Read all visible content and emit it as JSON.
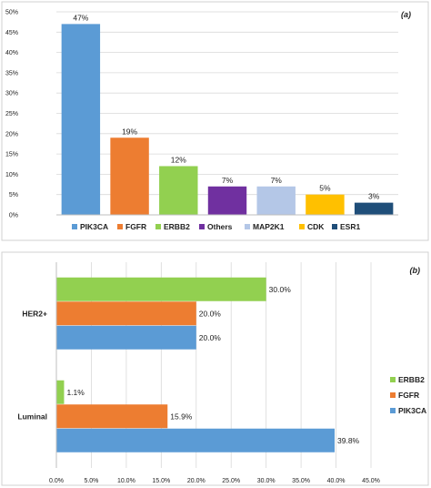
{
  "chart_data": [
    {
      "type": "bar",
      "panel_label": "(a)",
      "categories": [
        "PIK3CA",
        "FGFR",
        "ERBB2",
        "Others",
        "MAP2K1",
        "CDK",
        "ESR1"
      ],
      "values": [
        47,
        19,
        12,
        7,
        7,
        5,
        3
      ],
      "data_labels": [
        "47%",
        "19%",
        "12%",
        "7%",
        "7%",
        "5%",
        "3%"
      ],
      "colors": [
        "#5b9bd5",
        "#ed7d31",
        "#92d050",
        "#7030a0",
        "#b4c7e7",
        "#ffc000",
        "#1f4e79"
      ],
      "ylim": [
        0,
        50
      ],
      "yticks": [
        "0%",
        "5%",
        "10%",
        "15%",
        "20%",
        "25%",
        "30%",
        "35%",
        "40%",
        "45%",
        "50%"
      ],
      "grid": true,
      "legend_position": "bottom"
    },
    {
      "type": "bar",
      "orientation": "horizontal",
      "panel_label": "(b)",
      "categories": [
        "HER2+",
        "Luminal"
      ],
      "series": [
        {
          "name": "ERBB2",
          "color": "#92d050",
          "values": [
            30.0,
            1.1
          ],
          "labels": [
            "30.0%",
            "1.1%"
          ]
        },
        {
          "name": "FGFR",
          "color": "#ed7d31",
          "values": [
            20.0,
            15.9
          ],
          "labels": [
            "20.0%",
            "15.9%"
          ]
        },
        {
          "name": "PIK3CA",
          "color": "#5b9bd5",
          "values": [
            20.0,
            39.8
          ],
          "labels": [
            "20.0%",
            "39.8%"
          ]
        }
      ],
      "xlim": [
        0,
        45
      ],
      "xticks": [
        "0.0%",
        "5.0%",
        "10.0%",
        "15.0%",
        "20.0%",
        "25.0%",
        "30.0%",
        "35.0%",
        "40.0%",
        "45.0%"
      ],
      "grid": true,
      "legend_position": "right"
    }
  ]
}
